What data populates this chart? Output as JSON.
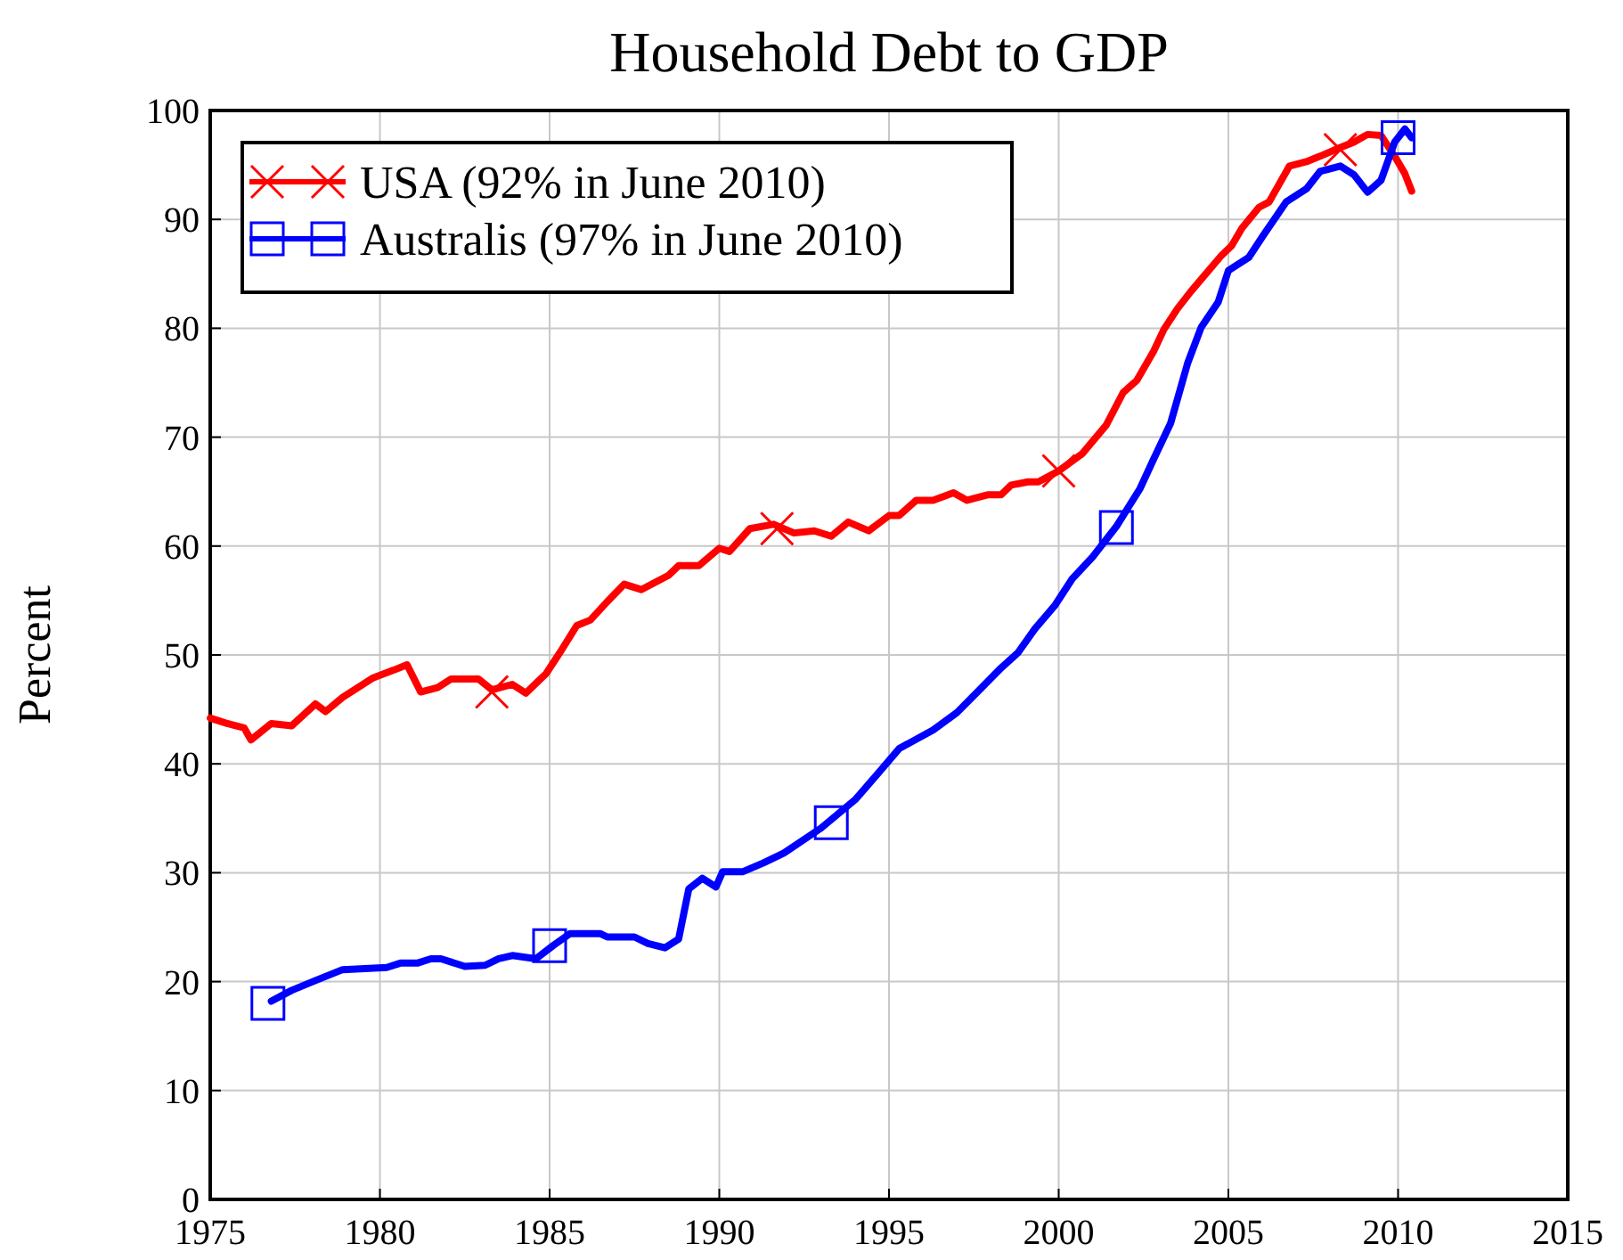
{
  "chart_data": {
    "type": "line",
    "title": "Household Debt to GDP",
    "ylabel": "Percent",
    "xlim": [
      1975,
      2015
    ],
    "xticks": [
      1975,
      1980,
      1985,
      1990,
      1995,
      2000,
      2005,
      2010,
      2015
    ],
    "ylim": [
      0,
      100
    ],
    "yticks": [
      0,
      10,
      20,
      30,
      40,
      50,
      60,
      70,
      80,
      90,
      100
    ],
    "grid": true,
    "legend": "top left",
    "line_style": "solid",
    "series": [
      {
        "name": "USA (92% in June 2010)",
        "color": "#ff0000",
        "x": [
          1975.0,
          1975.5,
          1976.0,
          1976.2,
          1976.8,
          1977.4,
          1978.1,
          1978.4,
          1978.9,
          1979.8,
          1980.4,
          1980.8,
          1981.2,
          1981.7,
          1982.1,
          1982.9,
          1983.3,
          1983.9,
          1984.3,
          1984.9,
          1985.3,
          1985.8,
          1986.2,
          1986.7,
          1987.2,
          1987.7,
          1988.5,
          1988.8,
          1989.4,
          1990.0,
          1990.3,
          1990.9,
          1991.6,
          1992.2,
          1992.8,
          1993.3,
          1993.8,
          1994.4,
          1995.0,
          1995.3,
          1995.8,
          1996.3,
          1996.9,
          1997.3,
          1997.9,
          1998.3,
          1998.6,
          1999.1,
          1999.4,
          2000.0,
          2000.7,
          2001.4,
          2001.9,
          2002.3,
          2002.8,
          2003.1,
          2003.5,
          2003.9,
          2004.2,
          2004.8,
          2005.1,
          2005.4,
          2005.9,
          2006.2,
          2006.8,
          2007.3,
          2007.7,
          2008.3,
          2008.7,
          2009.1,
          2009.5,
          2009.9,
          2010.2,
          2010.4
        ],
        "values": [
          44.2,
          43.7,
          43.3,
          42.2,
          43.7,
          43.5,
          45.5,
          44.8,
          46.1,
          47.9,
          48.6,
          49.1,
          46.6,
          47.0,
          47.8,
          47.8,
          46.8,
          47.3,
          46.5,
          48.3,
          50.2,
          52.7,
          53.2,
          54.9,
          56.5,
          56.0,
          57.3,
          58.2,
          58.2,
          59.8,
          59.5,
          61.6,
          62.0,
          61.2,
          61.4,
          60.9,
          62.2,
          61.4,
          62.8,
          62.8,
          64.2,
          64.2,
          64.9,
          64.2,
          64.7,
          64.7,
          65.6,
          65.9,
          65.9,
          66.9,
          68.5,
          71.1,
          74.1,
          75.2,
          77.9,
          79.9,
          81.8,
          83.4,
          84.5,
          86.7,
          87.6,
          89.2,
          91.1,
          91.6,
          94.9,
          95.3,
          95.8,
          96.6,
          97.1,
          97.8,
          97.7,
          95.8,
          94.2,
          92.6
        ]
      },
      {
        "name": "Australis (97% in June 2010)",
        "color": "#0000ff",
        "x": [
          1976.8,
          1977.4,
          1978.1,
          1978.9,
          1980.2,
          1980.6,
          1981.1,
          1981.5,
          1981.8,
          1982.5,
          1983.1,
          1983.5,
          1983.9,
          1984.6,
          1985.1,
          1985.6,
          1986.5,
          1986.7,
          1987.5,
          1987.9,
          1988.4,
          1988.8,
          1989.1,
          1989.5,
          1989.9,
          1990.1,
          1990.7,
          1991.3,
          1991.9,
          1993.0,
          1994.0,
          1994.7,
          1995.3,
          1996.3,
          1997.0,
          1997.7,
          1998.3,
          1998.8,
          1999.3,
          1999.9,
          2000.4,
          2001.0,
          2001.7,
          2002.4,
          2002.8,
          2003.3,
          2003.8,
          2004.2,
          2004.7,
          2005.0,
          2005.6,
          2006.0,
          2006.7,
          2007.3,
          2007.7,
          2008.3,
          2008.7,
          2009.1,
          2009.5,
          2009.9,
          2010.2,
          2010.4
        ],
        "values": [
          18.2,
          19.2,
          20.1,
          21.1,
          21.3,
          21.7,
          21.7,
          22.1,
          22.1,
          21.4,
          21.5,
          22.1,
          22.4,
          22.1,
          23.3,
          24.4,
          24.4,
          24.1,
          24.1,
          23.5,
          23.1,
          23.9,
          28.5,
          29.5,
          28.7,
          30.1,
          30.1,
          30.9,
          31.8,
          34.1,
          36.7,
          39.2,
          41.4,
          43.1,
          44.7,
          46.9,
          48.8,
          50.2,
          52.4,
          54.6,
          57.0,
          59.0,
          61.8,
          65.3,
          68.0,
          71.3,
          76.8,
          80.1,
          82.4,
          85.3,
          86.5,
          88.4,
          91.6,
          92.8,
          94.4,
          94.9,
          94.1,
          92.5,
          93.6,
          97.1,
          98.3,
          97.5
        ]
      },
      {
        "type": "scatter",
        "color": "#ff0000",
        "marker": "cross",
        "x": [
          1983.3,
          1991.7,
          2000.0,
          2008.3
        ],
        "values": [
          46.6,
          61.6,
          66.9,
          96.4
        ]
      },
      {
        "type": "scatter",
        "color": "#0000ff",
        "marker": "square",
        "x": [
          1976.7,
          1985.0,
          1993.3,
          2001.7,
          2010.0
        ],
        "values": [
          18.0,
          23.3,
          34.6,
          61.7,
          97.5
        ]
      }
    ]
  }
}
